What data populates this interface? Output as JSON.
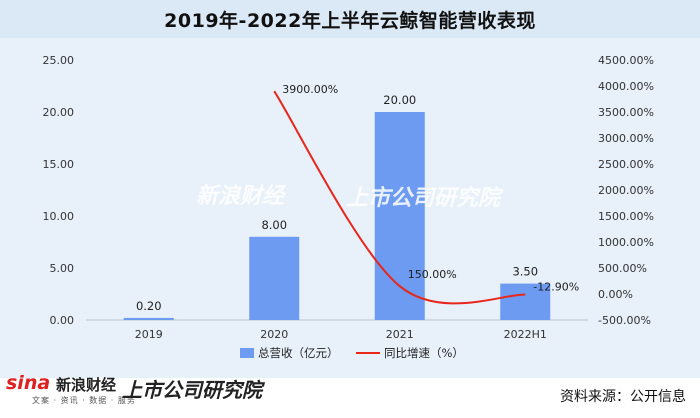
{
  "chart_data": {
    "type": "bar",
    "title": "2019年-2022年上半年云鲸智能营收表现",
    "categories": [
      "2019",
      "2020",
      "2021",
      "2022H1"
    ],
    "series": [
      {
        "name": "总营收（亿元）",
        "type": "bar",
        "axis": "left",
        "values": [
          0.2,
          8.0,
          20.0,
          3.5
        ],
        "labels": [
          "0.20",
          "8.00",
          "20.00",
          "3.50"
        ],
        "color": "#6d9bf1"
      },
      {
        "name": "同比增速（%）",
        "type": "line",
        "axis": "right",
        "values": [
          null,
          3900.0,
          150.0,
          -12.9
        ],
        "labels": [
          "",
          "3900.00%",
          "150.00%",
          "-12.90%"
        ],
        "color": "#e8261c"
      }
    ],
    "y_left": {
      "ylim": [
        0,
        25
      ],
      "ticks": [
        "0.00",
        "5.00",
        "10.00",
        "15.00",
        "20.00",
        "25.00"
      ]
    },
    "y_right": {
      "ylim": [
        -500,
        4500
      ],
      "ticks": [
        "-500.00%",
        "0.00%",
        "500.00%",
        "1000.00%",
        "1500.00%",
        "2000.00%",
        "2500.00%",
        "3000.00%",
        "3500.00%",
        "4000.00%",
        "4500.00%"
      ]
    },
    "grid": false,
    "legend_position": "bottom"
  },
  "watermark": {
    "sina": "新浪财经",
    "company_research": "上市公司研究院"
  },
  "footer": {
    "sina_logo": "sina",
    "sina_name": "新浪财经",
    "sina_sub": "文案 · 资讯 · 数据 · 服务",
    "brand2": "上市公司研究院",
    "source": "资料来源：公开信息"
  }
}
